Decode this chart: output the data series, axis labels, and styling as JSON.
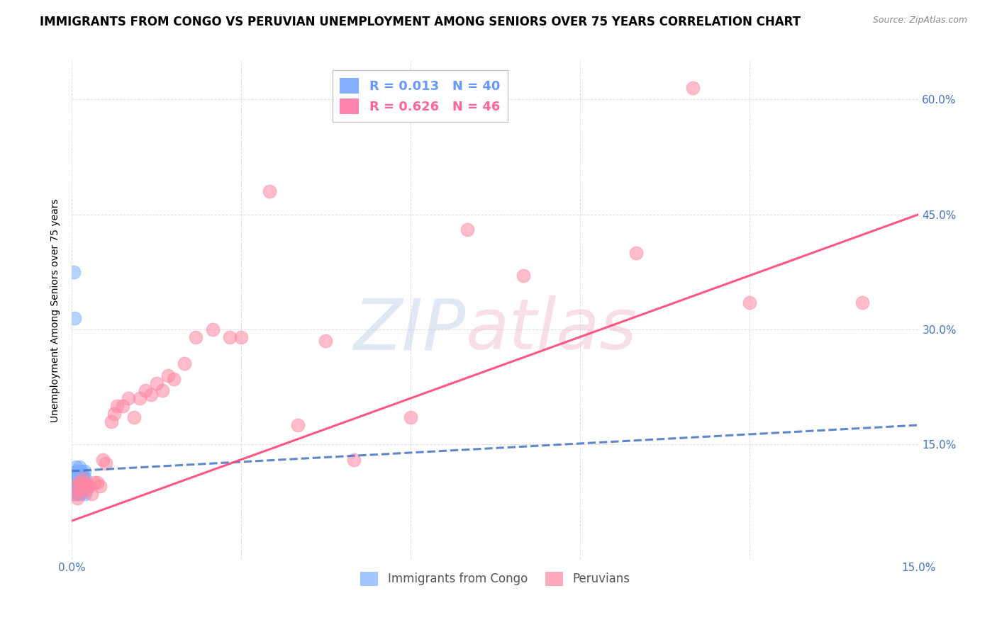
{
  "title": "IMMIGRANTS FROM CONGO VS PERUVIAN UNEMPLOYMENT AMONG SENIORS OVER 75 YEARS CORRELATION CHART",
  "source": "Source: ZipAtlas.com",
  "ylabel": "Unemployment Among Seniors over 75 years",
  "xlim": [
    0.0,
    0.15
  ],
  "ylim": [
    0.0,
    0.65
  ],
  "xticks": [
    0.0,
    0.03,
    0.06,
    0.09,
    0.12,
    0.15
  ],
  "yticks": [
    0.0,
    0.15,
    0.3,
    0.45,
    0.6
  ],
  "xticklabels": [
    "0.0%",
    "",
    "",
    "",
    "",
    "15.0%"
  ],
  "yticklabels_right": [
    "",
    "15.0%",
    "30.0%",
    "45.0%",
    "60.0%"
  ],
  "legend_entries": [
    {
      "label": "R = 0.013   N = 40",
      "color": "#6699ff"
    },
    {
      "label": "R = 0.626   N = 46",
      "color": "#ff6699"
    }
  ],
  "congo_scatter_x": [
    0.0002,
    0.0003,
    0.0004,
    0.0005,
    0.0005,
    0.0006,
    0.0007,
    0.0007,
    0.0008,
    0.0008,
    0.0009,
    0.0009,
    0.001,
    0.001,
    0.0011,
    0.0011,
    0.0012,
    0.0012,
    0.0013,
    0.0013,
    0.0014,
    0.0014,
    0.0015,
    0.0015,
    0.0016,
    0.0016,
    0.0017,
    0.0017,
    0.0018,
    0.0018,
    0.0019,
    0.002,
    0.0021,
    0.0022,
    0.0023,
    0.0024,
    0.0025,
    0.0003,
    0.0005,
    0.002
  ],
  "congo_scatter_y": [
    0.095,
    0.1,
    0.085,
    0.11,
    0.09,
    0.105,
    0.095,
    0.12,
    0.1,
    0.115,
    0.09,
    0.105,
    0.095,
    0.115,
    0.1,
    0.085,
    0.11,
    0.095,
    0.105,
    0.12,
    0.09,
    0.1,
    0.115,
    0.085,
    0.095,
    0.11,
    0.1,
    0.115,
    0.09,
    0.105,
    0.095,
    0.11,
    0.1,
    0.115,
    0.085,
    0.105,
    0.095,
    0.375,
    0.315,
    0.105
  ],
  "peru_scatter_x": [
    0.0005,
    0.0008,
    0.001,
    0.0012,
    0.0015,
    0.0018,
    0.002,
    0.0022,
    0.0025,
    0.0028,
    0.003,
    0.0035,
    0.004,
    0.0045,
    0.005,
    0.0055,
    0.006,
    0.007,
    0.0075,
    0.008,
    0.009,
    0.01,
    0.011,
    0.012,
    0.013,
    0.014,
    0.015,
    0.016,
    0.017,
    0.018,
    0.02,
    0.022,
    0.025,
    0.028,
    0.03,
    0.035,
    0.04,
    0.045,
    0.05,
    0.06,
    0.07,
    0.08,
    0.1,
    0.11,
    0.12,
    0.14
  ],
  "peru_scatter_y": [
    0.085,
    0.095,
    0.08,
    0.1,
    0.09,
    0.105,
    0.095,
    0.1,
    0.09,
    0.095,
    0.095,
    0.085,
    0.1,
    0.1,
    0.095,
    0.13,
    0.125,
    0.18,
    0.19,
    0.2,
    0.2,
    0.21,
    0.185,
    0.21,
    0.22,
    0.215,
    0.23,
    0.22,
    0.24,
    0.235,
    0.255,
    0.29,
    0.3,
    0.29,
    0.29,
    0.48,
    0.175,
    0.285,
    0.13,
    0.185,
    0.43,
    0.37,
    0.4,
    0.615,
    0.335,
    0.335
  ],
  "congo_color": "#7aadff",
  "peru_color": "#ff85a1",
  "congo_line_color": "#4472c4",
  "peru_line_color": "#ff4477",
  "background_color": "#ffffff",
  "grid_color": "#dddddd",
  "title_fontsize": 12,
  "axis_label_fontsize": 10,
  "tick_fontsize": 11
}
